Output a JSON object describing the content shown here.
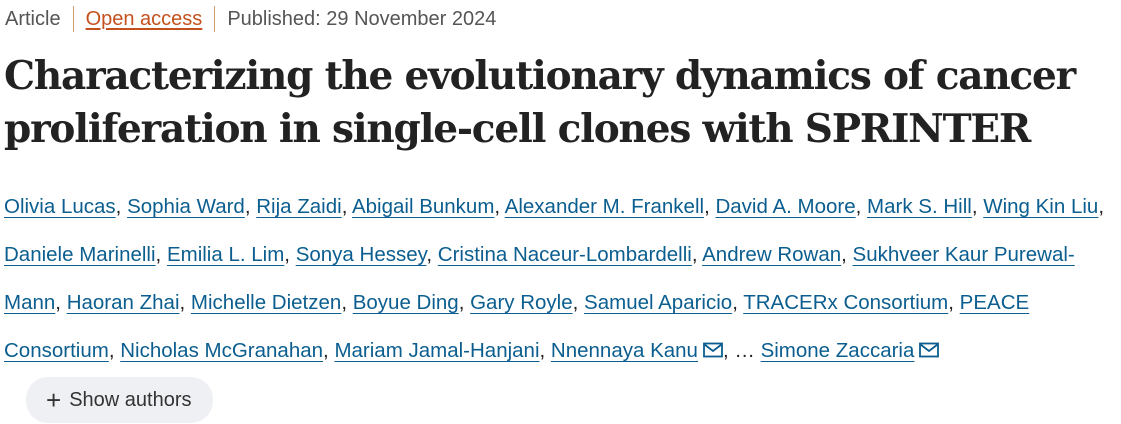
{
  "meta": {
    "type": "Article",
    "access": "Open access",
    "published": "Published: 29 November 2024"
  },
  "title": "Characterizing the evolutionary dynamics of cancer proliferation in single-cell clones with SPRINTER",
  "authors": [
    "Olivia Lucas",
    "Sophia Ward",
    "Rija Zaidi",
    "Abigail Bunkum",
    "Alexander M. Frankell",
    "David A. Moore",
    "Mark S. Hill",
    "Wing Kin Liu",
    "Daniele Marinelli",
    "Emilia L. Lim",
    "Sonya Hessey",
    "Cristina Naceur-Lombardelli",
    "Andrew Rowan",
    "Sukhveer Kaur Purewal-Mann",
    "Haoran Zhai",
    "Michelle Dietzen",
    "Boyue Ding",
    "Gary Royle",
    "Samuel Aparicio",
    "TRACERx Consortium",
    "PEACE Consortium",
    "Nicholas McGranahan",
    "Mariam Jamal-Hanjani",
    "Nnennaya Kanu"
  ],
  "ellipsis": ", …",
  "last_author": "Simone Zaccaria",
  "show_authors": {
    "plus": "+",
    "label": "Show authors"
  },
  "icons": {
    "mail": "envelope-icon"
  },
  "colors": {
    "link": "#0b5e8f",
    "open_access": "#c4511c",
    "separator": "#c8a06a"
  }
}
